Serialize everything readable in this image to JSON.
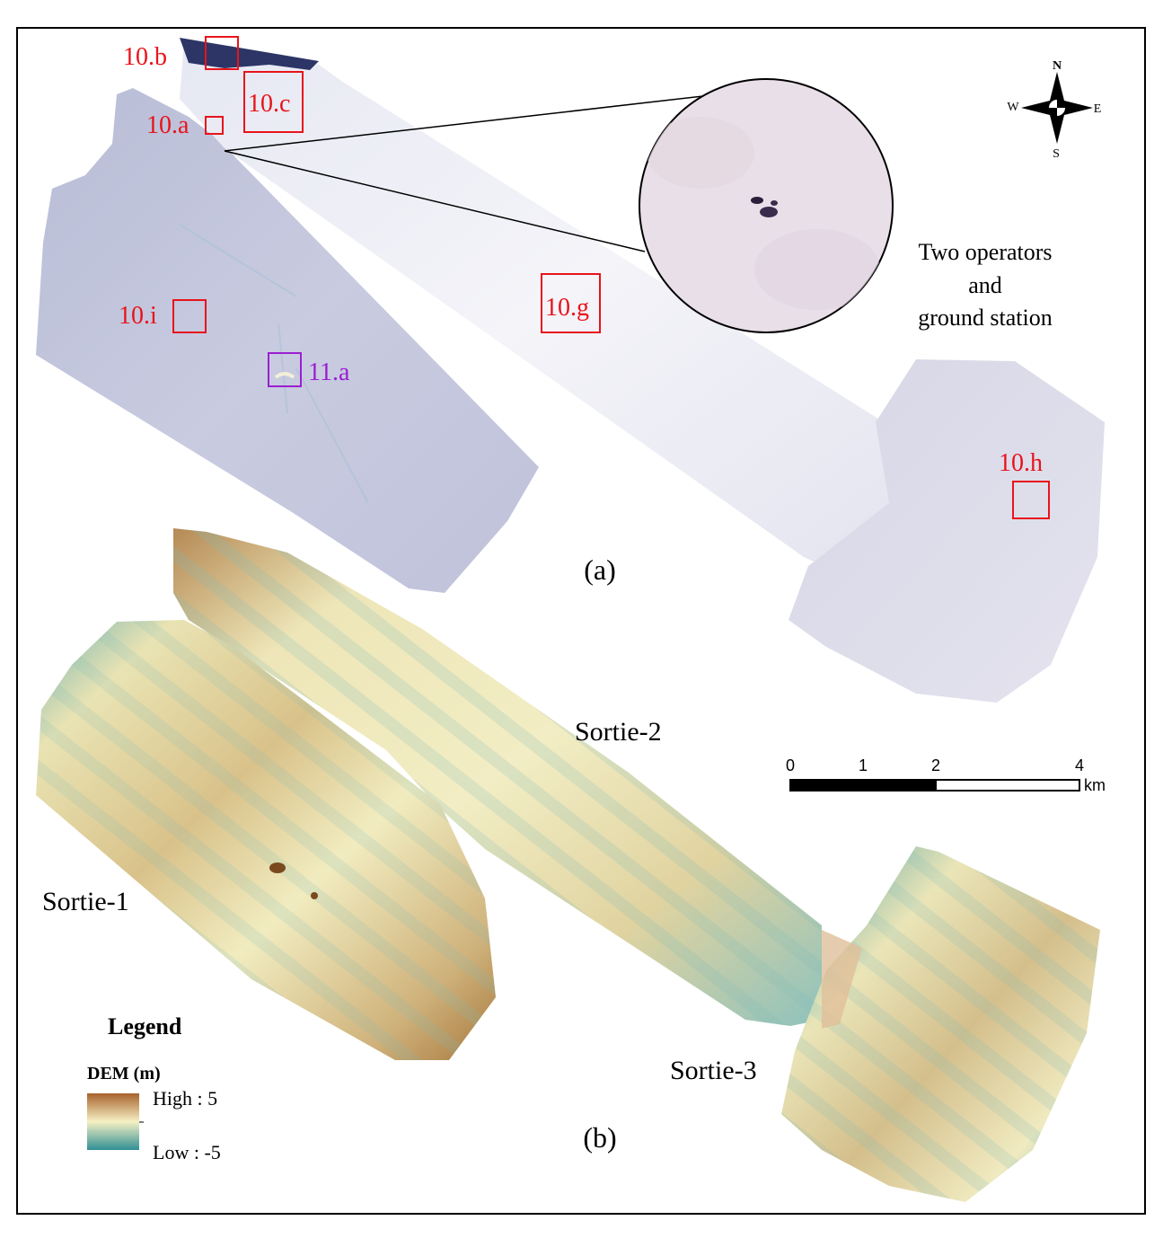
{
  "panel_a": {
    "label": "(a)",
    "inset_caption": [
      "Two operators",
      "and",
      "ground station"
    ],
    "region_boxes": [
      {
        "id": "10.b",
        "label": "10.b",
        "color": "#e8141b"
      },
      {
        "id": "10.c",
        "label": "10.c",
        "color": "#e8141b"
      },
      {
        "id": "10.a",
        "label": "10.a",
        "color": "#e8141b"
      },
      {
        "id": "10.i",
        "label": "10.i",
        "color": "#e8141b"
      },
      {
        "id": "11.a",
        "label": "11.a",
        "color": "#9b1fd1"
      },
      {
        "id": "10.g",
        "label": "10.g",
        "color": "#e8141b"
      },
      {
        "id": "10.h",
        "label": "10.h",
        "color": "#e8141b"
      }
    ]
  },
  "panel_b": {
    "label": "(b)",
    "sorties": [
      "Sortie-1",
      "Sortie-2",
      "Sortie-3"
    ]
  },
  "compass": {
    "north": "N",
    "south": "S",
    "east": "E",
    "west": "W"
  },
  "scale_bar": {
    "ticks": [
      "0",
      "1",
      "2",
      "4"
    ],
    "unit": "km"
  },
  "legend": {
    "title": "Legend",
    "layer": "DEM (m)",
    "high_label": "High : 5",
    "low_label": "Low : -5",
    "color_high": "#a8622b",
    "color_mid": "#f6f0c4",
    "color_low": "#2f8f94"
  }
}
